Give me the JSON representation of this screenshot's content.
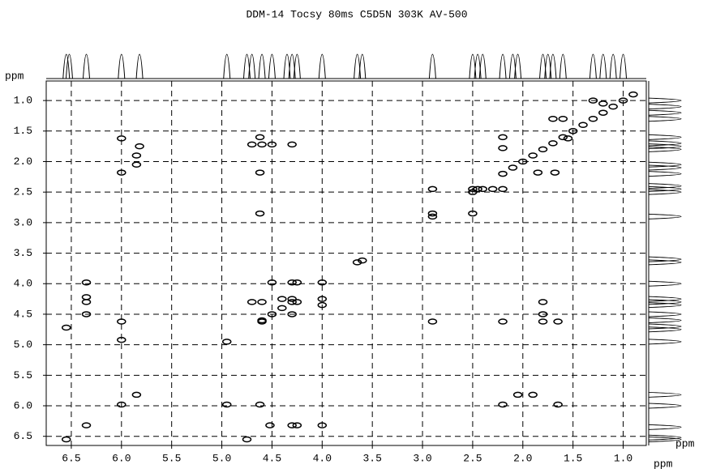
{
  "chart_data": {
    "type": "scatter",
    "title": "DDM-14 Tocsy 80ms C5D5N 303K AV-500",
    "xlabel": "ppm",
    "ylabel": "ppm",
    "right_projection_label": "ppm",
    "xlim": [
      6.75,
      0.77
    ],
    "ylim": [
      0.68,
      6.65
    ],
    "xticks": [
      6.5,
      {
        "value": 6,
        "label": "6.0"
      },
      5.5,
      {
        "value": 5,
        "label": "5.0"
      },
      4.5,
      {
        "value": 4,
        "label": "4.0"
      },
      3.5,
      {
        "value": 3,
        "label": "3.0"
      },
      2.5,
      {
        "value": 2,
        "label": "2.0"
      },
      1.5,
      {
        "value": 1,
        "label": "1.0"
      }
    ],
    "yticks": [
      {
        "value": 1,
        "label": "1.0"
      },
      1.5,
      {
        "value": 2,
        "label": "2.0"
      },
      2.5,
      {
        "value": 3,
        "label": "3.0"
      },
      3.5,
      {
        "value": 4,
        "label": "4.0"
      },
      4.5,
      {
        "value": 5,
        "label": "5.0"
      },
      5.5,
      {
        "value": 6,
        "label": "6.0"
      },
      6.5
    ],
    "grid": true,
    "color": "#000000",
    "x": [
      0.9,
      1.0,
      1.1,
      1.2,
      1.3,
      1.4,
      1.5,
      1.6,
      1.7,
      1.8,
      1.9,
      2.0,
      2.1,
      2.2,
      2.45,
      2.5,
      2.9,
      3.6,
      3.65,
      4.3,
      4.4,
      4.5,
      4.6,
      4.95,
      6.55,
      1.3,
      1.2,
      6.0,
      6.0,
      5.85,
      5.85,
      5.82,
      4.62,
      4.7,
      4.6,
      4.5,
      4.3,
      4.62,
      4.62,
      2.9,
      2.9,
      2.5,
      2.5,
      2.4,
      2.3,
      2.2,
      2.2,
      2.2,
      1.55,
      1.7,
      1.6,
      1.85,
      1.68,
      6.35,
      6.35,
      6.35,
      6.35,
      6.0,
      6.0,
      6.0,
      5.85,
      6.55,
      6.35,
      4.7,
      4.6,
      4.5,
      4.6,
      4.3,
      4.25,
      4.4,
      4.3,
      4.25,
      4.3,
      4.0,
      4.0,
      4.0,
      4.62,
      4.52,
      4.3,
      4.25,
      4.0,
      4.75,
      2.2,
      1.8,
      1.8,
      1.8,
      1.65,
      2.05,
      1.9,
      2.2,
      1.65,
      2.9,
      4.95
    ],
    "values": [
      0.9,
      1.0,
      1.1,
      1.2,
      1.3,
      1.4,
      1.5,
      1.6,
      1.7,
      1.8,
      1.9,
      2.0,
      2.1,
      2.2,
      2.45,
      2.5,
      2.9,
      3.62,
      3.65,
      4.3,
      4.4,
      4.5,
      4.6,
      4.95,
      6.55,
      1.0,
      1.05,
      1.62,
      2.18,
      1.9,
      2.05,
      1.75,
      1.6,
      1.72,
      1.72,
      1.72,
      1.72,
      2.18,
      2.85,
      2.45,
      2.85,
      2.85,
      2.45,
      2.45,
      2.45,
      2.45,
      1.6,
      1.78,
      1.62,
      1.3,
      1.3,
      2.18,
      2.18,
      3.98,
      4.22,
      4.3,
      4.5,
      4.62,
      4.92,
      5.98,
      5.82,
      4.72,
      6.32,
      4.3,
      4.3,
      3.98,
      4.62,
      3.98,
      3.98,
      4.25,
      4.25,
      4.3,
      4.5,
      3.98,
      4.25,
      4.35,
      5.98,
      6.32,
      6.32,
      6.32,
      6.32,
      6.55,
      4.62,
      4.3,
      4.5,
      4.62,
      4.62,
      5.82,
      5.82,
      5.98,
      5.98,
      4.62,
      5.98
    ],
    "projection_peaks": [
      6.55,
      6.52,
      6.35,
      6.0,
      5.82,
      4.95,
      4.75,
      4.7,
      4.6,
      4.5,
      4.35,
      4.3,
      4.25,
      4.0,
      3.65,
      3.6,
      2.9,
      2.5,
      2.45,
      2.4,
      2.2,
      2.1,
      2.05,
      1.8,
      1.75,
      1.7,
      1.6,
      1.3,
      1.2,
      1.1,
      1.0
    ]
  }
}
